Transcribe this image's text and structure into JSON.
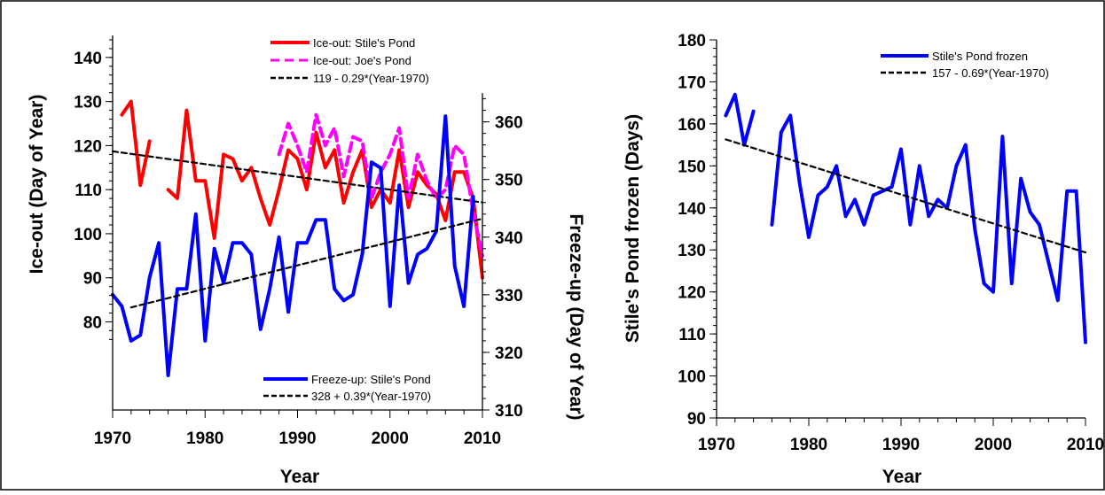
{
  "chart_data": [
    {
      "type": "line",
      "xlabel": "Year",
      "ylabel": "Ice-out (Day of Year)",
      "ylabel_right": "Freeze-up (Day of Year)",
      "xlim": [
        1970,
        2010
      ],
      "ylim": [
        60,
        145
      ],
      "ylim_right": [
        310,
        375
      ],
      "x_ticks": [
        1970,
        1980,
        1990,
        2000,
        2010
      ],
      "y_ticks": [
        80,
        90,
        100,
        110,
        120,
        130,
        140
      ],
      "y_ticks_right": [
        310,
        320,
        330,
        340,
        350,
        360
      ],
      "grid": false,
      "legend_top": {
        "position": "top-right",
        "entries": [
          "Ice-out: Stile's Pond",
          "Ice-out: Joe's Pond",
          "119 - 0.29*(Year-1970)"
        ]
      },
      "legend_bottom": {
        "position": "bottom-right",
        "entries": [
          "Freeze-up: Stile's Pond",
          "328 + 0.39*(Year-1970)"
        ]
      },
      "colors": {
        "stiles": "#ff0000",
        "joes": "#ff00ff",
        "freeze": "#0000ff",
        "trend": "#000000"
      },
      "series": [
        {
          "name": "Ice-out: Stile's Pond",
          "axis": "left",
          "color": "#ff0000",
          "style": "solid",
          "segments": [
            {
              "x": [
                1971,
                1972,
                1973,
                1974
              ],
              "y": [
                127,
                130,
                111,
                121
              ]
            },
            {
              "x": [
                1976,
                1977,
                1978,
                1979,
                1980,
                1981,
                1982,
                1983,
                1984,
                1985,
                1986,
                1987,
                1988,
                1989,
                1990,
                1991,
                1992,
                1993,
                1994,
                1995,
                1996,
                1997,
                1998,
                1999,
                2000,
                2001,
                2002,
                2003,
                2004,
                2005,
                2006,
                2007,
                2008,
                2009,
                2010
              ],
              "y": [
                110,
                108,
                128,
                112,
                112,
                99,
                118,
                117,
                112,
                115,
                108,
                102,
                110,
                119,
                117,
                110,
                123,
                115,
                119,
                107,
                114,
                119,
                106,
                110,
                107,
                119,
                106,
                114,
                111,
                109,
                103,
                114,
                114,
                108,
                90
              ]
            }
          ]
        },
        {
          "name": "Ice-out: Joe's Pond",
          "axis": "left",
          "color": "#ff00ff",
          "style": "dashed",
          "segments": [
            {
              "x": [
                1988,
                1989,
                1990,
                1991,
                1992,
                1993,
                1994,
                1995,
                1996,
                1997,
                1998,
                1999,
                2000,
                2001,
                2002,
                2003,
                2004,
                2005,
                2006,
                2007,
                2008,
                2009,
                2010
              ],
              "y": [
                118,
                125,
                120,
                114,
                127,
                120,
                124,
                113,
                122,
                121,
                108,
                114,
                118,
                124,
                108,
                118,
                112,
                108,
                110,
                120,
                118,
                105,
                95
              ]
            }
          ]
        },
        {
          "name": "119 - 0.29*(Year-1970)",
          "axis": "left",
          "color": "#000000",
          "style": "dashed",
          "segments": [
            {
              "x": [
                1970,
                2010
              ],
              "y": [
                118.7,
                107.1
              ]
            }
          ]
        },
        {
          "name": "Freeze-up: Stile's Pond",
          "axis": "right",
          "color": "#0000ff",
          "style": "solid",
          "segments": [
            {
              "x": [
                1970,
                1971,
                1972,
                1973,
                1974,
                1975,
                1976,
                1977,
                1978,
                1979,
                1980,
                1981,
                1982,
                1983,
                1984,
                1985,
                1986,
                1987,
                1988,
                1989,
                1990,
                1991,
                1992,
                1993,
                1994,
                1995,
                1996,
                1997,
                1998,
                1999,
                2000,
                2001,
                2002,
                2003,
                2004,
                2005,
                2006,
                2007,
                2008,
                2009
              ],
              "y": [
                330,
                328,
                322,
                323,
                333,
                339,
                316,
                331,
                331,
                344,
                322,
                338,
                332,
                339,
                339,
                337,
                324,
                331,
                340,
                327,
                339,
                339,
                343,
                343,
                331,
                329,
                330,
                337,
                353,
                352,
                328,
                349,
                332,
                337,
                338,
                341,
                361,
                335,
                328,
                347
              ]
            }
          ]
        },
        {
          "name": "328 + 0.39*(Year-1970)",
          "axis": "right",
          "color": "#000000",
          "style": "dashed",
          "segments": [
            {
              "x": [
                1972,
                2010
              ],
              "y": [
                327.8,
                343.2
              ]
            }
          ]
        }
      ]
    },
    {
      "type": "line",
      "xlabel": "Year",
      "ylabel": "Stile's Pond frozen (Days)",
      "xlim": [
        1970,
        2010
      ],
      "ylim": [
        90,
        180
      ],
      "x_ticks": [
        1970,
        1980,
        1990,
        2000,
        2010
      ],
      "y_ticks": [
        90,
        100,
        110,
        120,
        130,
        140,
        150,
        160,
        170,
        180
      ],
      "grid": false,
      "legend": {
        "position": "top-right",
        "entries": [
          "Stile's Pond frozen",
          "157 - 0.69*(Year-1970)"
        ]
      },
      "series": [
        {
          "name": "Stile's Pond frozen",
          "color": "#0000ff",
          "style": "solid",
          "segments": [
            {
              "x": [
                1971,
                1972,
                1973,
                1974
              ],
              "y": [
                162,
                167,
                155,
                163
              ]
            },
            {
              "x": [
                1976,
                1977,
                1978,
                1979,
                1980,
                1981,
                1982,
                1983,
                1984,
                1985,
                1986,
                1987,
                1988,
                1989,
                1990,
                1991,
                1992,
                1993,
                1994,
                1995,
                1996,
                1997,
                1998,
                1999,
                2000,
                2001,
                2002,
                2003,
                2004,
                2005,
                2006,
                2007,
                2008,
                2009,
                2010
              ],
              "y": [
                136,
                158,
                162,
                146,
                133,
                143,
                145,
                150,
                138,
                142,
                136,
                143,
                144,
                145,
                154,
                136,
                150,
                138,
                142,
                140,
                150,
                155,
                135,
                122,
                120,
                157,
                122,
                147,
                139,
                136,
                127,
                118,
                144,
                144,
                108
              ]
            }
          ]
        },
        {
          "name": "157 - 0.69*(Year-1970)",
          "color": "#000000",
          "style": "dashed",
          "segments": [
            {
              "x": [
                1971,
                2010
              ],
              "y": [
                156.3,
                129.4
              ]
            }
          ]
        }
      ]
    }
  ]
}
